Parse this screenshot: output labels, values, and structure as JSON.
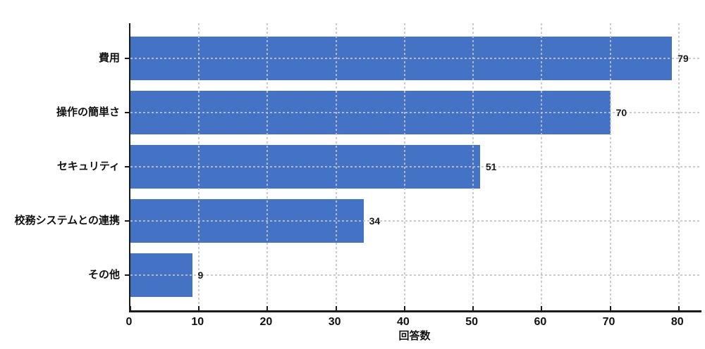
{
  "chart_data": {
    "type": "bar",
    "orientation": "horizontal",
    "title": "",
    "categories": [
      "費用",
      "操作の簡単さ",
      "セキュリティ",
      "校務システムとの連携",
      "その他"
    ],
    "values": [
      79,
      70,
      51,
      34,
      9
    ],
    "value_labels": [
      "79",
      "70",
      "51",
      "34",
      "9"
    ],
    "xlabel": "回答数",
    "ylabel": "",
    "xlim": [
      0,
      83.3
    ],
    "xticks": [
      0,
      10,
      20,
      30,
      40,
      50,
      60,
      70,
      80
    ],
    "grid": "dashed-both-axes",
    "legend": "none",
    "bar_color": "#4472C4",
    "grid_color": "#c3c3c3",
    "axis_color": "#1a1a1a",
    "text_color": "#111111"
  }
}
